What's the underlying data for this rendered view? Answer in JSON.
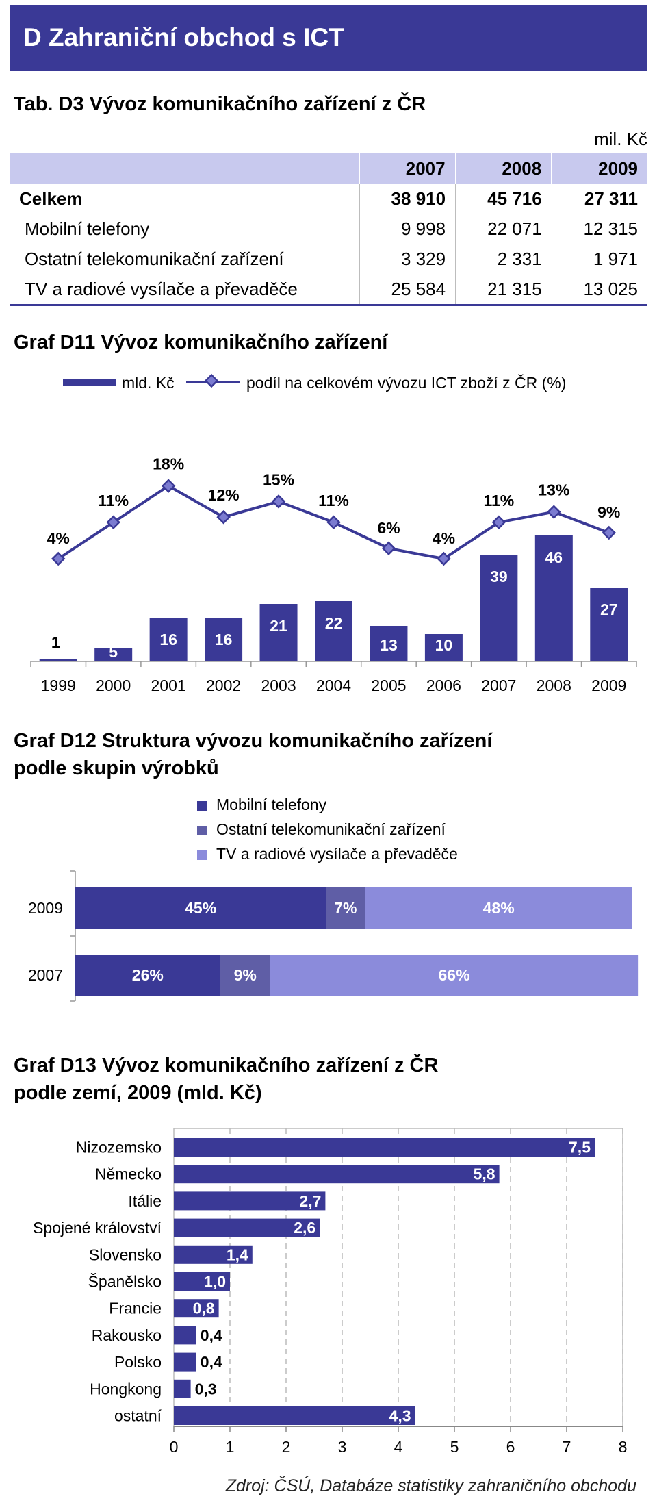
{
  "header": {
    "title": "D  Zahraniční obchod s ICT"
  },
  "table_d3": {
    "title": "Tab. D3 Vývoz komunikačního zařízení z ČR",
    "unit": "mil. Kč",
    "columns": [
      "2007",
      "2008",
      "2009"
    ],
    "rows": [
      {
        "label": "Celkem",
        "values": [
          "38 910",
          "45 716",
          "27 311"
        ]
      },
      {
        "label": "Mobilní telefony",
        "values": [
          "9 998",
          "22 071",
          "12 315"
        ]
      },
      {
        "label": "Ostatní telekomunikační zařízení",
        "values": [
          "3 329",
          "2 331",
          "1 971"
        ]
      },
      {
        "label": "TV a radiové vysílače a převaděče",
        "values": [
          "25 584",
          "21 315",
          "13 025"
        ]
      }
    ]
  },
  "chart_d11": {
    "title": "Graf D11 Vývoz komunikačního zařízení",
    "legend_bar": "mld. Kč",
    "legend_line": "podíl na celkovém vývozu ICT zboží z ČR (%)"
  },
  "chart_d12": {
    "title_line1": "Graf D12 Struktura vývozu komunikačního zařízení",
    "title_line2": "podle skupin výrobků"
  },
  "chart_d13": {
    "title_line1": "Graf D13 Vývoz komunikačního zařízení z ČR",
    "title_line2": "podle zemí, 2009 (mld. Kč)"
  },
  "source": "Zdroj: ČSÚ, Databáze statistiky zahraničního obchodu",
  "colors": {
    "navy": "#3a3996",
    "mid": "#5f5ea6",
    "light": "#8b8bdb",
    "header_bg": "#3a3996",
    "table_head": "#c8c9ee"
  },
  "chart_data": [
    {
      "type": "bar",
      "id": "D11",
      "categories": [
        "1999",
        "2000",
        "2001",
        "2002",
        "2003",
        "2004",
        "2005",
        "2006",
        "2007",
        "2008",
        "2009"
      ],
      "series": [
        {
          "name": "mld. Kč",
          "type": "bar",
          "values": [
            1,
            5,
            16,
            16,
            21,
            22,
            13,
            10,
            39,
            46,
            27
          ]
        },
        {
          "name": "podíl na celkovém vývozu ICT zboží z ČR (%)",
          "type": "line",
          "values": [
            4,
            11,
            18,
            12,
            15,
            11,
            6,
            4,
            11,
            13,
            9
          ],
          "labels": [
            "4%",
            "11%",
            "18%",
            "12%",
            "15%",
            "11%",
            "6%",
            "4%",
            "11%",
            "13%",
            "9%"
          ]
        }
      ]
    },
    {
      "type": "bar",
      "id": "D12",
      "orientation": "horizontal",
      "stacked": true,
      "percent": true,
      "categories": [
        "2009",
        "2007"
      ],
      "series": [
        {
          "name": "Mobilní telefony",
          "values": [
            45,
            26
          ],
          "color": "#3a3996"
        },
        {
          "name": "Ostatní telekomunikační zařízení",
          "values": [
            7,
            9
          ],
          "color": "#5f5ea6"
        },
        {
          "name": "TV a radiové vysílače a převaděče",
          "values": [
            48,
            66
          ],
          "color": "#8b8bdb"
        }
      ],
      "labels": [
        [
          "45%",
          "7%",
          "48%"
        ],
        [
          "26%",
          "9%",
          "66%"
        ]
      ]
    },
    {
      "type": "bar",
      "id": "D13",
      "orientation": "horizontal",
      "categories": [
        "Nizozemsko",
        "Německo",
        "Itálie",
        "Spojené království",
        "Slovensko",
        "Španělsko",
        "Francie",
        "Rakousko",
        "Polsko",
        "Hongkong",
        "ostatní"
      ],
      "values": [
        7.5,
        5.8,
        2.7,
        2.6,
        1.4,
        1.0,
        0.8,
        0.4,
        0.4,
        0.3,
        4.3
      ],
      "value_labels": [
        "7,5",
        "5,8",
        "2,7",
        "2,6",
        "1,4",
        "1,0",
        "0,8",
        "0,4",
        "0,4",
        "0,3",
        "4,3"
      ],
      "xlim": [
        0,
        8
      ],
      "xticks": [
        "0",
        "1",
        "2",
        "3",
        "4",
        "5",
        "6",
        "7",
        "8"
      ],
      "grid": true
    }
  ]
}
